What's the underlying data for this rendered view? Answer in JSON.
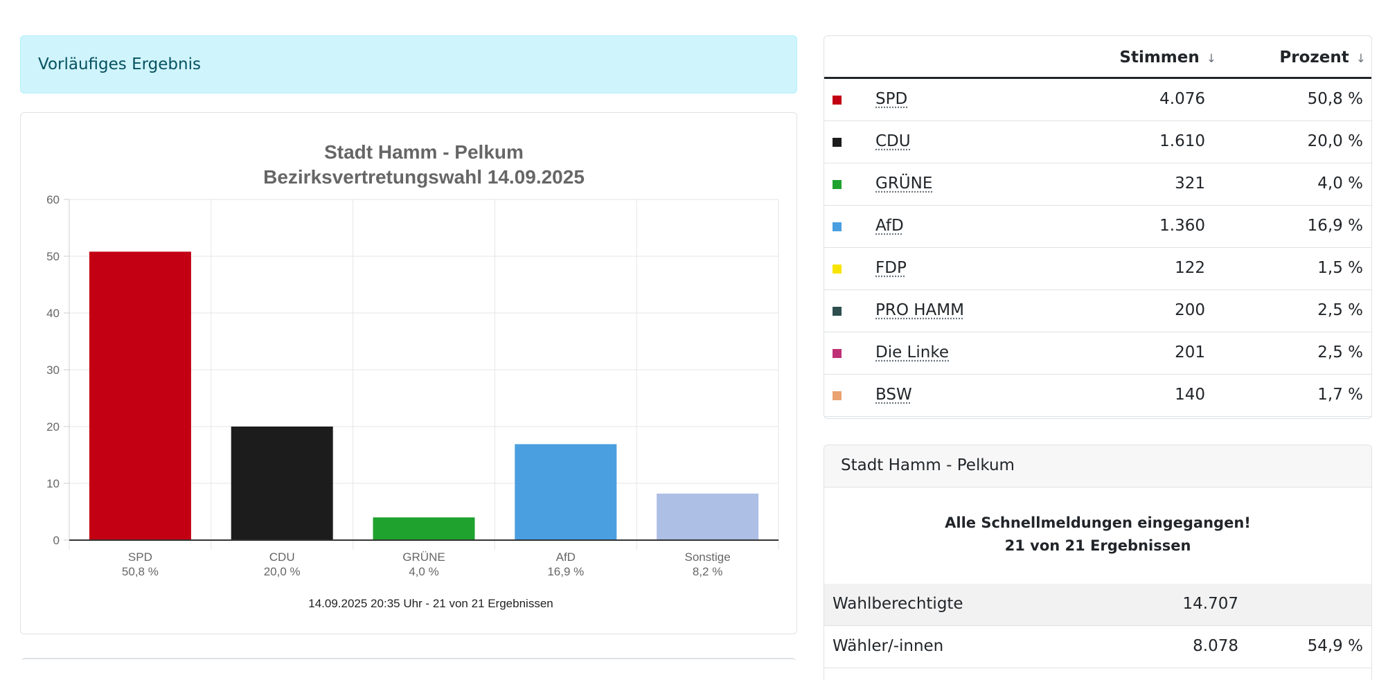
{
  "alert": {
    "text": "Vorläufiges Ergebnis"
  },
  "chart_data": {
    "type": "bar",
    "title_lines": [
      "Stadt Hamm - Pelkum",
      "Bezirksvertretungswahl 14.09.2025"
    ],
    "categories": [
      "SPD",
      "CDU",
      "GRÜNE",
      "AfD",
      "Sonstige"
    ],
    "category_labels": [
      "50,8 %",
      "20,0 %",
      "4,0 %",
      "16,9 %",
      "8,2 %"
    ],
    "values": [
      50.8,
      20.0,
      4.0,
      16.9,
      8.2
    ],
    "colors": [
      "#c30013",
      "#1c1c1c",
      "#1fa22e",
      "#4a9fe0",
      "#aebfe6"
    ],
    "ylim": [
      0,
      60
    ],
    "yticks": [
      0,
      10,
      20,
      30,
      40,
      50,
      60
    ],
    "grid": true,
    "footer": "14.09.2025 20:35 Uhr - 21 von 21 Ergebnissen"
  },
  "table": {
    "headers": {
      "votes": "Stimmen",
      "pct": "Prozent",
      "sort_icon": "↓"
    },
    "rows": [
      {
        "party": "SPD",
        "votes": "4.076",
        "pct": "50,8 %",
        "color": "#c30013"
      },
      {
        "party": "CDU",
        "votes": "1.610",
        "pct": "20,0 %",
        "color": "#1c1c1c"
      },
      {
        "party": "GRÜNE",
        "votes": "321",
        "pct": "4,0 %",
        "color": "#1fa22e"
      },
      {
        "party": "AfD",
        "votes": "1.360",
        "pct": "16,9 %",
        "color": "#4a9fe0"
      },
      {
        "party": "FDP",
        "votes": "122",
        "pct": "1,5 %",
        "color": "#f7e400"
      },
      {
        "party": "PRO HAMM",
        "votes": "200",
        "pct": "2,5 %",
        "color": "#2f4f4f"
      },
      {
        "party": "Die Linke",
        "votes": "201",
        "pct": "2,5 %",
        "color": "#be3075"
      },
      {
        "party": "BSW",
        "votes": "140",
        "pct": "1,7 %",
        "color": "#e9a272"
      }
    ]
  },
  "info": {
    "title": "Stadt Hamm - Pelkum",
    "message_line1": "Alle Schnellmeldungen eingegangen!",
    "message_line2": "21 von 21 Ergebnissen",
    "stats": [
      {
        "label": "Wahlberechtigte",
        "value": "14.707",
        "pct": ""
      },
      {
        "label": "Wähler/-innen",
        "value": "8.078",
        "pct": "54,9 %"
      }
    ]
  }
}
